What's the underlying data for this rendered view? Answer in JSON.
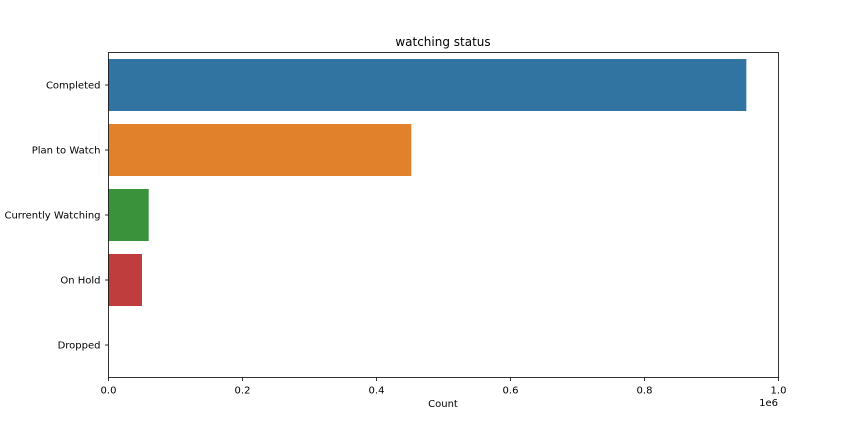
{
  "chart_data": {
    "type": "bar",
    "orientation": "horizontal",
    "title": "watching status",
    "xlabel": "Count",
    "ylabel": "",
    "x_offset_text": "1e6",
    "categories": [
      "Completed",
      "Plan to Watch",
      "Currently Watching",
      "On Hold",
      "Dropped"
    ],
    "values": [
      952000,
      452000,
      60000,
      50000,
      0
    ],
    "colors": [
      "#3274a1",
      "#e1812c",
      "#3a923a",
      "#c03d3e",
      "#9372b2"
    ],
    "xlim": [
      0,
      1000000
    ],
    "xticks": [
      0,
      200000,
      400000,
      600000,
      800000,
      1000000
    ],
    "xtick_labels": [
      "0.0",
      "0.2",
      "0.4",
      "0.6",
      "0.8",
      "1.0"
    ],
    "grid": false,
    "legend": "none"
  }
}
